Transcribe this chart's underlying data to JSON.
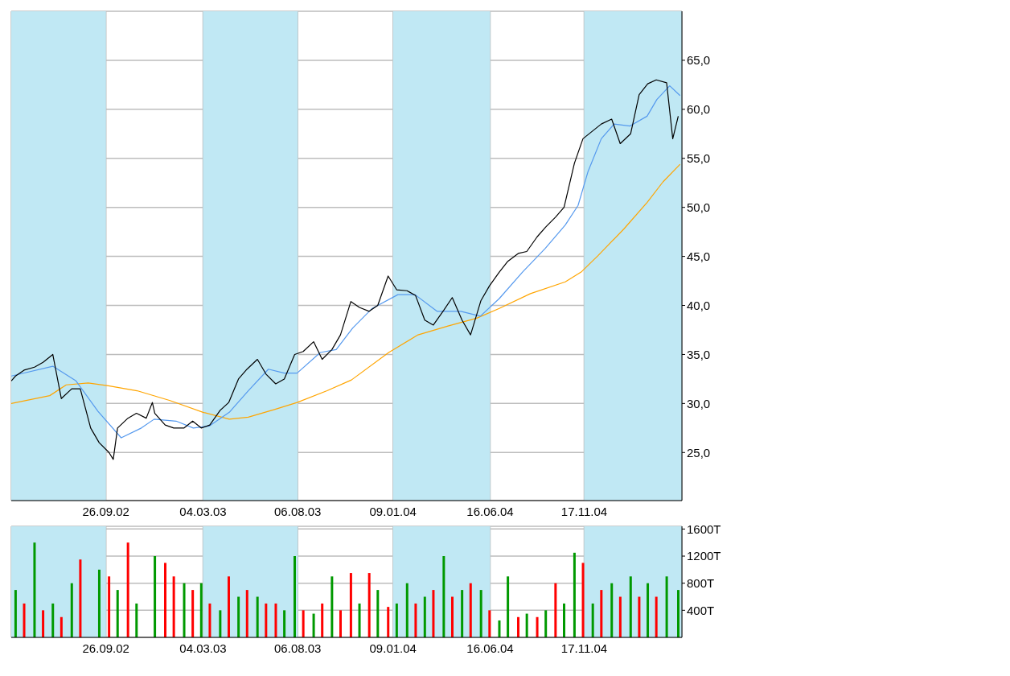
{
  "chart_data": [
    {
      "type": "line",
      "grid": true,
      "xlim": [
        "2002-04-24",
        "2005-04-26"
      ],
      "xticks": [
        {
          "value": "2002-09-26",
          "label": "26.09.02"
        },
        {
          "value": "2003-03-04",
          "label": "04.03.03"
        },
        {
          "value": "2003-08-06",
          "label": "06.08.03"
        },
        {
          "value": "2004-01-09",
          "label": "09.01.04"
        },
        {
          "value": "2004-06-16",
          "label": "16.06.04"
        },
        {
          "value": "2004-11-17",
          "label": "17.11.04"
        }
      ],
      "ylim": [
        20.1,
        70
      ],
      "yticks": [
        {
          "value": 25,
          "label": "25,0"
        },
        {
          "value": 30,
          "label": "30,0"
        },
        {
          "value": 35,
          "label": "35,0"
        },
        {
          "value": 40,
          "label": "40,0"
        },
        {
          "value": 45,
          "label": "45,0"
        },
        {
          "value": 50,
          "label": "50,0"
        },
        {
          "value": 55,
          "label": "55,0"
        },
        {
          "value": 60,
          "label": "60,0"
        },
        {
          "value": 65,
          "label": "65,0"
        }
      ],
      "bands": [
        {
          "axis": "x",
          "from": "2002-04-24",
          "to": "2002-09-26",
          "color": "#c0e8f4"
        },
        {
          "axis": "x",
          "from": "2003-03-04",
          "to": "2003-08-06",
          "color": "#c0e8f4"
        },
        {
          "axis": "x",
          "from": "2004-01-09",
          "to": "2004-06-16",
          "color": "#c0e8f4"
        },
        {
          "axis": "x",
          "from": "2004-11-17",
          "to": "2005-04-26",
          "color": "#c0e8f4"
        }
      ],
      "series": [
        {
          "color": "#ffa500",
          "x": [
            "2002-04-24",
            "2002-06-26",
            "2002-07-23",
            "2002-08-28",
            "2002-09-30",
            "2002-11-16",
            "2003-01-09",
            "2003-03-04",
            "2003-04-16",
            "2003-05-17",
            "2003-06-30",
            "2003-08-05",
            "2003-09-23",
            "2003-11-02",
            "2004-01-02",
            "2004-02-19",
            "2004-04-08",
            "2004-05-25",
            "2004-07-01",
            "2004-08-21",
            "2004-10-17",
            "2004-11-12",
            "2004-12-10",
            "2005-01-21",
            "2005-02-28",
            "2005-03-26",
            "2005-04-23"
          ],
          "values": [
            30.0,
            30.8,
            31.9,
            32.1,
            31.8,
            31.3,
            30.3,
            29.1,
            28.4,
            28.6,
            29.4,
            30.1,
            31.3,
            32.4,
            35.2,
            37.0,
            37.9,
            38.7,
            39.7,
            41.2,
            42.4,
            43.4,
            45.1,
            47.8,
            50.5,
            52.6,
            54.4
          ]
        },
        {
          "color": "#5599ee",
          "x": [
            "2002-04-24",
            "2002-07-01",
            "2002-08-08",
            "2002-09-13",
            "2002-10-21",
            "2002-11-23",
            "2002-12-14",
            "2003-01-19",
            "2003-02-16",
            "2003-03-14",
            "2003-04-16",
            "2003-05-17",
            "2003-06-19",
            "2003-07-15",
            "2003-08-05",
            "2003-09-12",
            "2003-10-08",
            "2003-11-04",
            "2003-12-06",
            "2004-01-17",
            "2004-02-14",
            "2004-03-21",
            "2004-04-29",
            "2004-05-31",
            "2004-07-01",
            "2004-08-08",
            "2004-09-14",
            "2004-10-17",
            "2004-11-07",
            "2004-11-23",
            "2004-12-15",
            "2005-01-05",
            "2005-01-31",
            "2005-02-28",
            "2005-03-16",
            "2005-04-06",
            "2005-04-23"
          ],
          "values": [
            32.8,
            33.8,
            32.3,
            29.2,
            26.5,
            27.5,
            28.4,
            28.2,
            27.5,
            27.7,
            29.1,
            31.3,
            33.5,
            33.1,
            33.1,
            35.2,
            35.5,
            37.7,
            39.7,
            41.1,
            41.1,
            39.4,
            39.4,
            38.9,
            40.7,
            43.4,
            45.8,
            48.2,
            50.2,
            53.6,
            57.0,
            58.5,
            58.3,
            59.3,
            61.0,
            62.4,
            61.4
          ]
        },
        {
          "color": "#000000",
          "x": [
            "2002-04-24",
            "2002-05-01",
            "2002-05-15",
            "2002-06-01",
            "2002-06-15",
            "2002-07-01",
            "2002-07-15",
            "2002-08-01",
            "2002-08-15",
            "2002-09-01",
            "2002-09-15",
            "2002-10-01",
            "2002-10-08",
            "2002-10-15",
            "2002-11-01",
            "2002-11-15",
            "2002-12-01",
            "2002-12-11",
            "2002-12-15",
            "2003-01-01",
            "2003-01-15",
            "2003-02-01",
            "2003-02-15",
            "2003-03-01",
            "2003-03-15",
            "2003-04-01",
            "2003-04-15",
            "2003-05-01",
            "2003-05-15",
            "2003-06-01",
            "2003-06-15",
            "2003-07-01",
            "2003-07-15",
            "2003-08-01",
            "2003-08-15",
            "2003-09-01",
            "2003-09-15",
            "2003-10-01",
            "2003-10-15",
            "2003-11-01",
            "2003-11-15",
            "2003-12-01",
            "2003-12-15",
            "2004-01-01",
            "2004-01-15",
            "2004-02-01",
            "2004-02-15",
            "2004-03-01",
            "2004-03-15",
            "2004-04-01",
            "2004-04-15",
            "2004-05-01",
            "2004-05-15",
            "2004-06-01",
            "2004-06-15",
            "2004-07-01",
            "2004-07-15",
            "2004-08-01",
            "2004-08-15",
            "2004-09-01",
            "2004-09-15",
            "2004-10-01",
            "2004-10-15",
            "2004-11-01",
            "2004-11-15",
            "2004-12-01",
            "2004-12-15",
            "2005-01-01",
            "2005-01-15",
            "2005-02-01",
            "2005-02-15",
            "2005-03-01",
            "2005-03-15",
            "2005-04-01",
            "2005-04-11",
            "2005-04-20"
          ],
          "values": [
            32.3,
            32.8,
            33.4,
            33.7,
            34.2,
            35.0,
            30.5,
            31.5,
            31.5,
            27.5,
            26.0,
            25.0,
            24.3,
            27.5,
            28.5,
            29.0,
            28.5,
            30.1,
            29.0,
            27.8,
            27.5,
            27.5,
            28.2,
            27.5,
            27.8,
            29.3,
            30.1,
            32.5,
            33.5,
            34.5,
            33.0,
            32.0,
            32.5,
            35.0,
            35.3,
            36.3,
            34.5,
            35.5,
            37.0,
            40.4,
            39.8,
            39.4,
            40.0,
            43.0,
            41.6,
            41.5,
            41.0,
            38.5,
            38.0,
            39.5,
            40.8,
            38.5,
            37.0,
            40.5,
            42.0,
            43.4,
            44.5,
            45.3,
            45.5,
            47.0,
            48.0,
            49.0,
            50.0,
            54.5,
            57.0,
            57.8,
            58.5,
            59.0,
            56.5,
            57.5,
            61.5,
            62.6,
            63.0,
            62.7,
            57.0,
            59.3
          ]
        }
      ]
    },
    {
      "type": "bar",
      "grid": true,
      "xlim": [
        "2002-04-24",
        "2005-04-26"
      ],
      "xticks": [
        {
          "value": "2002-09-26",
          "label": "26.09.02"
        },
        {
          "value": "2003-03-04",
          "label": "04.03.03"
        },
        {
          "value": "2003-08-06",
          "label": "06.08.03"
        },
        {
          "value": "2004-01-09",
          "label": "09.01.04"
        },
        {
          "value": "2004-06-16",
          "label": "16.06.04"
        },
        {
          "value": "2004-11-17",
          "label": "17.11.04"
        }
      ],
      "ylim": [
        0,
        1640
      ],
      "yticks": [
        {
          "value": 400,
          "label": "400T"
        },
        {
          "value": 800,
          "label": "800T"
        },
        {
          "value": 1200,
          "label": "1200T"
        },
        {
          "value": 1600,
          "label": "1600T"
        }
      ],
      "bands": [
        {
          "axis": "x",
          "from": "2002-04-24",
          "to": "2002-09-26",
          "color": "#c0e8f4"
        },
        {
          "axis": "x",
          "from": "2003-03-04",
          "to": "2003-08-06",
          "color": "#c0e8f4"
        },
        {
          "axis": "x",
          "from": "2004-01-09",
          "to": "2004-06-16",
          "color": "#c0e8f4"
        },
        {
          "axis": "x",
          "from": "2004-11-17",
          "to": "2005-04-26",
          "color": "#c0e8f4"
        }
      ],
      "x": [
        "2002-05-01",
        "2002-05-15",
        "2002-06-01",
        "2002-06-15",
        "2002-07-01",
        "2002-07-15",
        "2002-08-01",
        "2002-08-15",
        "2002-09-01",
        "2002-09-15",
        "2002-10-01",
        "2002-10-15",
        "2002-11-01",
        "2002-11-15",
        "2002-12-01",
        "2002-12-15",
        "2003-01-01",
        "2003-01-15",
        "2003-02-01",
        "2003-02-15",
        "2003-03-01",
        "2003-03-15",
        "2003-04-01",
        "2003-04-15",
        "2003-05-01",
        "2003-05-15",
        "2003-06-01",
        "2003-06-15",
        "2003-07-01",
        "2003-07-15",
        "2003-08-01",
        "2003-08-15",
        "2003-09-01",
        "2003-09-15",
        "2003-10-01",
        "2003-10-15",
        "2003-11-01",
        "2003-11-15",
        "2003-12-01",
        "2003-12-15",
        "2004-01-01",
        "2004-01-15",
        "2004-02-01",
        "2004-02-15",
        "2004-03-01",
        "2004-03-15",
        "2004-04-01",
        "2004-04-15",
        "2004-05-01",
        "2004-05-15",
        "2004-06-01",
        "2004-06-15",
        "2004-07-01",
        "2004-07-15",
        "2004-08-01",
        "2004-08-15",
        "2004-09-01",
        "2004-09-15",
        "2004-10-01",
        "2004-10-15",
        "2004-11-01",
        "2004-11-15",
        "2004-12-01",
        "2004-12-15",
        "2005-01-01",
        "2005-01-15",
        "2005-02-01",
        "2005-02-15",
        "2005-03-01",
        "2005-03-15",
        "2005-04-01",
        "2005-04-11",
        "2005-04-20"
      ],
      "values": [
        700,
        500,
        1400,
        400,
        500,
        300,
        800,
        1150,
        null,
        1000,
        900,
        700,
        1400,
        500,
        null,
        1200,
        1100,
        900,
        800,
        700,
        800,
        500,
        400,
        900,
        600,
        700,
        600,
        500,
        500,
        400,
        1200,
        400,
        350,
        500,
        900,
        400,
        950,
        500,
        950,
        700,
        450,
        500,
        800,
        500,
        600,
        700,
        1200,
        600,
        700,
        800,
        700,
        400,
        250,
        900,
        300,
        350,
        300,
        400,
        800,
        500,
        1250,
        1100,
        500,
        700,
        800,
        600,
        900,
        600,
        800,
        600,
        900,
        null,
        700
      ],
      "colors": [
        "#009900",
        "#ff0000",
        "#009900",
        "#ff0000",
        "#009900",
        "#ff0000",
        "#009900",
        "#ff0000",
        "#ff0000",
        "#009900",
        "#ff0000",
        "#009900",
        "#ff0000",
        "#009900",
        "#ff0000",
        "#009900",
        "#ff0000",
        "#ff0000",
        "#009900",
        "#ff0000",
        "#009900",
        "#ff0000",
        "#009900",
        "#ff0000",
        "#009900",
        "#ff0000",
        "#009900",
        "#ff0000",
        "#ff0000",
        "#009900",
        "#009900",
        "#ff0000",
        "#009900",
        "#ff0000",
        "#009900",
        "#ff0000",
        "#ff0000",
        "#009900",
        "#ff0000",
        "#009900",
        "#ff0000",
        "#009900",
        "#009900",
        "#ff0000",
        "#009900",
        "#ff0000",
        "#009900",
        "#ff0000",
        "#009900",
        "#ff0000",
        "#009900",
        "#ff0000",
        "#009900",
        "#009900",
        "#ff0000",
        "#009900",
        "#ff0000",
        "#009900",
        "#ff0000",
        "#009900",
        "#009900",
        "#ff0000",
        "#009900",
        "#ff0000",
        "#009900",
        "#ff0000",
        "#009900",
        "#ff0000",
        "#009900",
        "#ff0000",
        "#009900",
        "#ff0000",
        "#009900"
      ]
    }
  ]
}
